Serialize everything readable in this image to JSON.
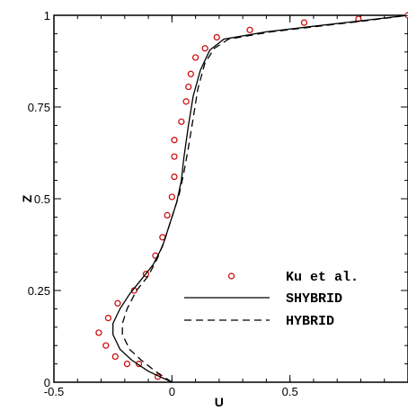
{
  "chart_data": {
    "type": "line",
    "xlabel": "U",
    "ylabel": "Z",
    "xlim": [
      -0.5,
      1.0
    ],
    "ylim": [
      0,
      1
    ],
    "x_ticks": [
      -0.5,
      0,
      0.5
    ],
    "x_tick_labels": [
      "-0.5",
      "0",
      "0.5"
    ],
    "y_ticks": [
      0,
      0.25,
      0.5,
      0.75,
      1
    ],
    "y_tick_labels": [
      "0",
      "0.25",
      "0.5",
      "0.75",
      "1"
    ],
    "grid": false,
    "legend_position": "bottom-right",
    "colors": {
      "experiment": "#cc0000",
      "lines": "#000000"
    },
    "series": [
      {
        "name": "Ku et al.",
        "style": "markers",
        "points": [
          [
            -0.06,
            0.015
          ],
          [
            -0.14,
            0.05
          ],
          [
            -0.19,
            0.05
          ],
          [
            -0.24,
            0.07
          ],
          [
            -0.28,
            0.1
          ],
          [
            -0.31,
            0.135
          ],
          [
            -0.27,
            0.175
          ],
          [
            -0.23,
            0.215
          ],
          [
            -0.16,
            0.25
          ],
          [
            -0.11,
            0.295
          ],
          [
            -0.07,
            0.345
          ],
          [
            -0.04,
            0.395
          ],
          [
            -0.02,
            0.455
          ],
          [
            0.0,
            0.505
          ],
          [
            0.01,
            0.56
          ],
          [
            0.01,
            0.615
          ],
          [
            0.01,
            0.66
          ],
          [
            0.04,
            0.71
          ],
          [
            0.06,
            0.765
          ],
          [
            0.07,
            0.805
          ],
          [
            0.08,
            0.84
          ],
          [
            0.1,
            0.885
          ],
          [
            0.14,
            0.91
          ],
          [
            0.19,
            0.94
          ],
          [
            0.33,
            0.96
          ],
          [
            0.56,
            0.98
          ],
          [
            0.79,
            0.99
          ],
          [
            1.0,
            1.0
          ]
        ]
      },
      {
        "name": "SHYBRID",
        "style": "solid",
        "points": [
          [
            0.0,
            0.0
          ],
          [
            -0.1,
            0.03
          ],
          [
            -0.17,
            0.06
          ],
          [
            -0.22,
            0.09
          ],
          [
            -0.25,
            0.13
          ],
          [
            -0.25,
            0.16
          ],
          [
            -0.22,
            0.2
          ],
          [
            -0.18,
            0.24
          ],
          [
            -0.13,
            0.28
          ],
          [
            -0.08,
            0.32
          ],
          [
            -0.04,
            0.37
          ],
          [
            -0.01,
            0.43
          ],
          [
            0.02,
            0.49
          ],
          [
            0.04,
            0.55
          ],
          [
            0.05,
            0.61
          ],
          [
            0.07,
            0.7
          ],
          [
            0.09,
            0.78
          ],
          [
            0.12,
            0.85
          ],
          [
            0.16,
            0.905
          ],
          [
            0.22,
            0.935
          ],
          [
            0.4,
            0.955
          ],
          [
            0.6,
            0.97
          ],
          [
            0.8,
            0.985
          ],
          [
            1.0,
            1.0
          ]
        ]
      },
      {
        "name": "HYBRID",
        "style": "dashed",
        "points": [
          [
            0.0,
            0.0
          ],
          [
            -0.07,
            0.03
          ],
          [
            -0.13,
            0.06
          ],
          [
            -0.18,
            0.09
          ],
          [
            -0.21,
            0.13
          ],
          [
            -0.21,
            0.16
          ],
          [
            -0.19,
            0.2
          ],
          [
            -0.15,
            0.25
          ],
          [
            -0.1,
            0.29
          ],
          [
            -0.06,
            0.34
          ],
          [
            -0.03,
            0.39
          ],
          [
            0.0,
            0.45
          ],
          [
            0.03,
            0.51
          ],
          [
            0.05,
            0.57
          ],
          [
            0.07,
            0.64
          ],
          [
            0.09,
            0.72
          ],
          [
            0.11,
            0.8
          ],
          [
            0.14,
            0.87
          ],
          [
            0.18,
            0.91
          ],
          [
            0.24,
            0.935
          ],
          [
            0.42,
            0.955
          ],
          [
            0.62,
            0.97
          ],
          [
            0.82,
            0.985
          ],
          [
            1.0,
            1.0
          ]
        ]
      }
    ]
  }
}
